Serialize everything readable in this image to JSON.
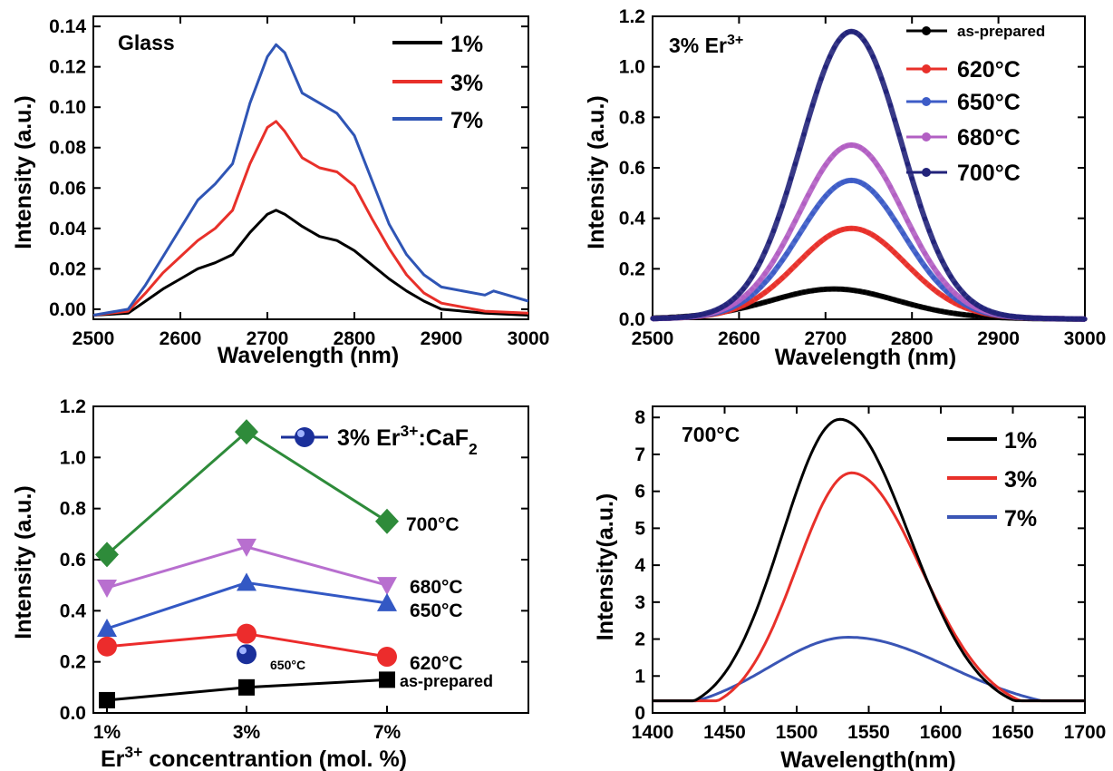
{
  "chart_data": [
    {
      "type": "line",
      "panel": "top-left",
      "title": "Glass",
      "xlabel": "Wavelength (nm)",
      "ylabel": "Intensity (a.u.)",
      "xlim": [
        2500,
        3000
      ],
      "ylim": [
        -0.005,
        0.145
      ],
      "xticks": [
        "2500",
        "2600",
        "2700",
        "2800",
        "2900",
        "3000"
      ],
      "yticks": [
        "0.00",
        "0.02",
        "0.04",
        "0.06",
        "0.08",
        "0.10",
        "0.12",
        "0.14"
      ],
      "legend_position": "top-right",
      "series": [
        {
          "name": "1%",
          "color": "#000000",
          "x": [
            2500,
            2540,
            2560,
            2580,
            2600,
            2620,
            2640,
            2660,
            2680,
            2700,
            2710,
            2720,
            2740,
            2760,
            2780,
            2800,
            2820,
            2840,
            2860,
            2880,
            2900,
            2950,
            3000
          ],
          "y": [
            -0.003,
            -0.002,
            0.004,
            0.01,
            0.015,
            0.02,
            0.023,
            0.027,
            0.038,
            0.047,
            0.049,
            0.047,
            0.041,
            0.036,
            0.034,
            0.029,
            0.022,
            0.015,
            0.009,
            0.004,
            0.0,
            -0.002,
            -0.003
          ]
        },
        {
          "name": "3%",
          "color": "#e8302a",
          "x": [
            2500,
            2540,
            2560,
            2580,
            2600,
            2620,
            2640,
            2660,
            2680,
            2700,
            2710,
            2720,
            2740,
            2760,
            2780,
            2800,
            2820,
            2840,
            2860,
            2880,
            2900,
            2950,
            3000
          ],
          "y": [
            -0.003,
            -0.001,
            0.008,
            0.018,
            0.026,
            0.034,
            0.04,
            0.049,
            0.072,
            0.09,
            0.093,
            0.088,
            0.075,
            0.07,
            0.068,
            0.061,
            0.045,
            0.03,
            0.017,
            0.008,
            0.003,
            -0.001,
            -0.002
          ]
        },
        {
          "name": "7%",
          "color": "#2f55b5",
          "x": [
            2500,
            2540,
            2560,
            2580,
            2600,
            2620,
            2640,
            2660,
            2680,
            2700,
            2710,
            2720,
            2740,
            2760,
            2780,
            2800,
            2820,
            2840,
            2860,
            2880,
            2900,
            2950,
            2960,
            3000
          ],
          "y": [
            -0.003,
            0.0,
            0.012,
            0.026,
            0.04,
            0.054,
            0.062,
            0.072,
            0.102,
            0.125,
            0.131,
            0.127,
            0.107,
            0.102,
            0.097,
            0.086,
            0.064,
            0.042,
            0.027,
            0.017,
            0.011,
            0.007,
            0.009,
            0.004
          ]
        }
      ]
    },
    {
      "type": "line",
      "panel": "top-right",
      "title": "3% Er³⁺",
      "xlabel": "Wavelength (nm)",
      "ylabel": "Intensity (a.u.)",
      "xlim": [
        2500,
        3000
      ],
      "ylim": [
        0,
        1.2
      ],
      "xticks": [
        "2500",
        "2600",
        "2700",
        "2800",
        "2900",
        "3000"
      ],
      "yticks": [
        "0.0",
        "0.2",
        "0.4",
        "0.6",
        "0.8",
        "1.0",
        "1.2"
      ],
      "legend_position": "top-right",
      "series": [
        {
          "name": "as-prepared",
          "color": "#000000",
          "peak_x": 2710,
          "peak_y": 0.1,
          "width": 70,
          "base": 0.02
        },
        {
          "name": "620°C",
          "color": "#e8302a",
          "peak_x": 2730,
          "peak_y": 0.34,
          "width": 62,
          "base": 0.02
        },
        {
          "name": "650°C",
          "color": "#3d5cc7",
          "peak_x": 2730,
          "peak_y": 0.53,
          "width": 60,
          "base": 0.02
        },
        {
          "name": "680°C",
          "color": "#b25fc3",
          "peak_x": 2730,
          "peak_y": 0.67,
          "width": 60,
          "base": 0.02
        },
        {
          "name": "700°C",
          "color": "#22237a",
          "peak_x": 2730,
          "peak_y": 1.12,
          "width": 58,
          "base": 0.02
        }
      ]
    },
    {
      "type": "line",
      "panel": "bottom-left",
      "xlabel": "Er³⁺ concentrantion (mol. %)",
      "ylabel": "Intensity (a.u.)",
      "categories": [
        "1%",
        "3%",
        "7%"
      ],
      "ylim": [
        0,
        1.2
      ],
      "yticks": [
        "0.0",
        "0.2",
        "0.4",
        "0.6",
        "0.8",
        "1.0",
        "1.2"
      ],
      "series": [
        {
          "name": "700°C",
          "color": "#2e8b3a",
          "marker": "diamond",
          "values": [
            0.62,
            1.1,
            0.75
          ]
        },
        {
          "name": "680°C",
          "color": "#b86fcf",
          "marker": "triangle-down",
          "values": [
            0.49,
            0.65,
            0.5
          ]
        },
        {
          "name": "650°C",
          "color": "#3358c4",
          "marker": "triangle-up",
          "values": [
            0.33,
            0.51,
            0.43
          ]
        },
        {
          "name": "620°C",
          "color": "#ec2c2c",
          "marker": "circle",
          "values": [
            0.26,
            0.31,
            0.22
          ]
        },
        {
          "name": "as-prepared",
          "color": "#000000",
          "marker": "square",
          "values": [
            0.05,
            0.1,
            0.13
          ]
        }
      ],
      "reference_series": {
        "name": "3% Er³⁺:CaF₂",
        "color": "#1a2f9a",
        "point_label": "650°C",
        "category": "3%",
        "value": 0.23
      }
    },
    {
      "type": "line",
      "panel": "bottom-right",
      "title": "700°C",
      "xlabel": "Wavelength(nm)",
      "ylabel": "Intensity(a.u.)",
      "xlim": [
        1400,
        1700
      ],
      "ylim": [
        0,
        8.3
      ],
      "xticks": [
        "1400",
        "1450",
        "1500",
        "1550",
        "1600",
        "1650",
        "1700"
      ],
      "yticks": [
        "0",
        "1",
        "2",
        "3",
        "4",
        "5",
        "6",
        "7",
        "8"
      ],
      "legend_position": "top-right",
      "series": [
        {
          "name": "1%",
          "color": "#000000",
          "peak_x": 1530,
          "peak_y": 7.95,
          "sigma_left": 40,
          "sigma_right": 48
        },
        {
          "name": "3%",
          "color": "#e8302a",
          "peak_x": 1538,
          "peak_y": 6.5,
          "sigma_left": 38,
          "sigma_right": 48
        },
        {
          "name": "7%",
          "color": "#3a55b5",
          "peak_x": 1536,
          "peak_y": 2.05,
          "sigma_left": 55,
          "sigma_right": 70
        }
      ]
    }
  ]
}
